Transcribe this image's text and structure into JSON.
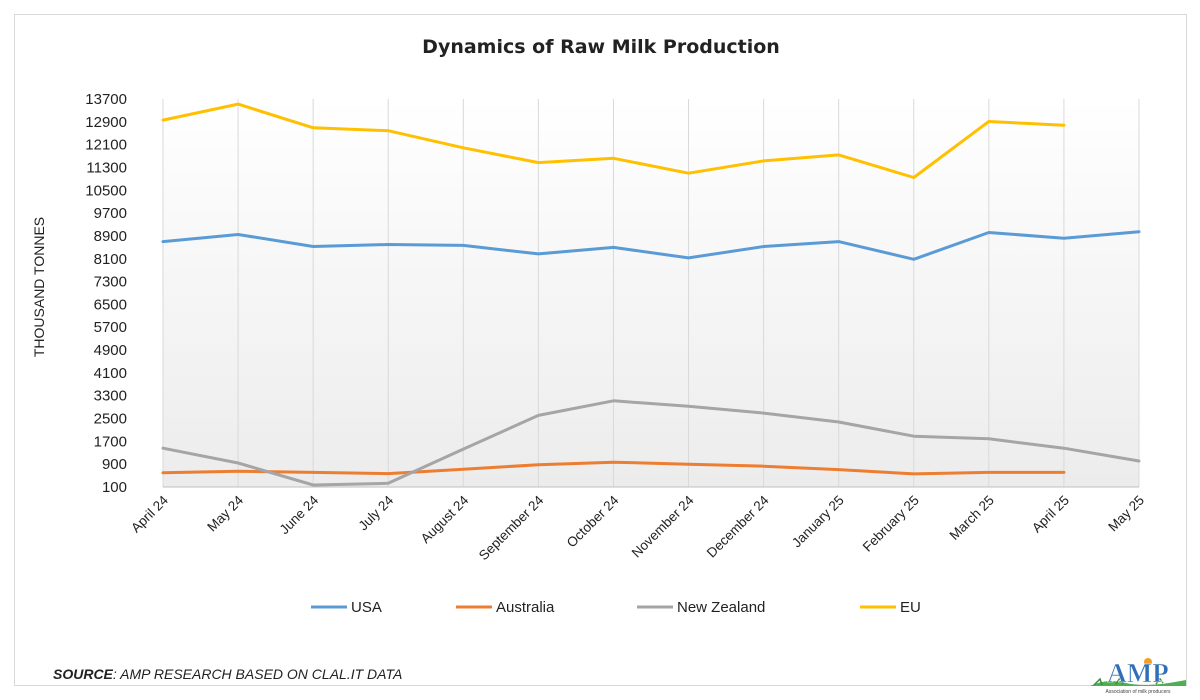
{
  "source": {
    "label": "SOURCE",
    "text": ": AMP RESEARCH BASED ON CLAL.IT DATA"
  },
  "logo": {
    "text": "AMP",
    "subtitle": "Association of milk producers"
  },
  "chart_data": {
    "type": "line",
    "title": "Dynamics of Raw Milk Production",
    "xlabel": "",
    "ylabel": "THOUSAND TONNES",
    "ylim": [
      100,
      13700
    ],
    "yticks": [
      100,
      900,
      1700,
      2500,
      3300,
      4100,
      4900,
      5700,
      6500,
      7300,
      8100,
      8900,
      9700,
      10500,
      11300,
      12100,
      12900,
      13700
    ],
    "grid": "vertical",
    "legend": "bottom",
    "categories": [
      "April 24",
      "May 24",
      "June 24",
      "July 24",
      "August 24",
      "September 24",
      "October 24",
      "November 24",
      "December 24",
      "January 25",
      "February 25",
      "March 25",
      "April 25",
      "May 25"
    ],
    "series": [
      {
        "name": "USA",
        "color": "#5b9bd5",
        "values": [
          8700,
          8950,
          8530,
          8600,
          8570,
          8270,
          8500,
          8130,
          8530,
          8700,
          8080,
          9020,
          8820,
          9050
        ]
      },
      {
        "name": "Australia",
        "color": "#ed7d31",
        "values": [
          600,
          650,
          610,
          570,
          720,
          880,
          970,
          900,
          830,
          710,
          560,
          610,
          610,
          null
        ]
      },
      {
        "name": "New Zealand",
        "color": "#a5a5a5",
        "values": [
          1460,
          940,
          170,
          230,
          1430,
          2610,
          3120,
          2930,
          2690,
          2380,
          1880,
          1790,
          1460,
          1010
        ]
      },
      {
        "name": "EU",
        "color": "#ffc000",
        "values": [
          12960,
          13520,
          12690,
          12590,
          11990,
          11470,
          11620,
          11100,
          11530,
          11740,
          10950,
          12910,
          12780,
          null
        ]
      }
    ]
  }
}
